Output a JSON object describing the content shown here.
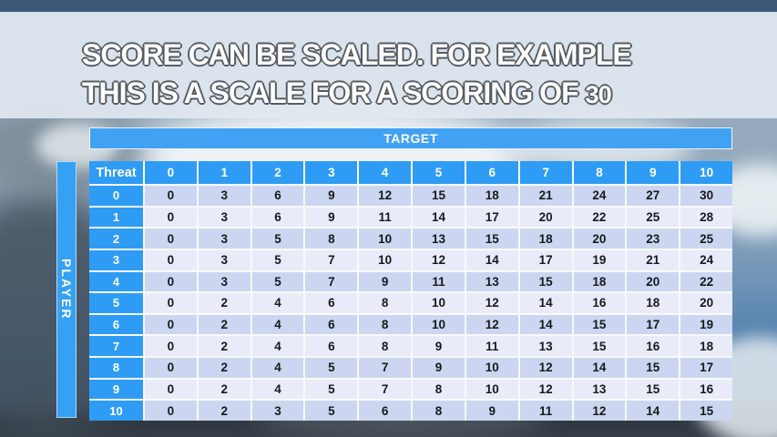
{
  "title": {
    "line1": "SCORE CAN BE SCALED. FOR EXAMPLE",
    "line2": "THIS IS A SCALE FOR A SCORING OF",
    "line2_number": "30"
  },
  "table": {
    "target_label": "TARGET",
    "player_label": "PLAYER",
    "corner_label": "Threat",
    "column_headers": [
      "0",
      "1",
      "2",
      "3",
      "4",
      "5",
      "6",
      "7",
      "8",
      "9",
      "10"
    ],
    "row_headers": [
      "0",
      "1",
      "2",
      "3",
      "4",
      "5",
      "6",
      "7",
      "8",
      "9",
      "10"
    ],
    "rows": [
      [
        0,
        3,
        6,
        9,
        12,
        15,
        18,
        21,
        24,
        27,
        30
      ],
      [
        0,
        3,
        6,
        9,
        11,
        14,
        17,
        20,
        22,
        25,
        28
      ],
      [
        0,
        3,
        5,
        8,
        10,
        13,
        15,
        18,
        20,
        23,
        25
      ],
      [
        0,
        3,
        5,
        7,
        10,
        12,
        14,
        17,
        19,
        21,
        24
      ],
      [
        0,
        3,
        5,
        7,
        9,
        11,
        13,
        15,
        18,
        20,
        22
      ],
      [
        0,
        2,
        4,
        6,
        8,
        10,
        12,
        14,
        16,
        18,
        20
      ],
      [
        0,
        2,
        4,
        6,
        8,
        10,
        12,
        14,
        15,
        17,
        19
      ],
      [
        0,
        2,
        4,
        6,
        8,
        9,
        11,
        13,
        15,
        16,
        18
      ],
      [
        0,
        2,
        4,
        5,
        7,
        9,
        10,
        12,
        14,
        15,
        17
      ],
      [
        0,
        2,
        4,
        5,
        7,
        8,
        10,
        12,
        13,
        15,
        16
      ],
      [
        0,
        2,
        3,
        5,
        6,
        8,
        9,
        11,
        12,
        14,
        15
      ]
    ]
  },
  "colors": {
    "header_blue": "#2e9cf4",
    "target_bar_blue": "#41a2f3",
    "row_stripe_dark": "#ccd6f0",
    "row_stripe_light": "#e9ecf8",
    "data_text": "#17191d",
    "title_text": "#ffffff",
    "title_outline": "#565c64"
  }
}
